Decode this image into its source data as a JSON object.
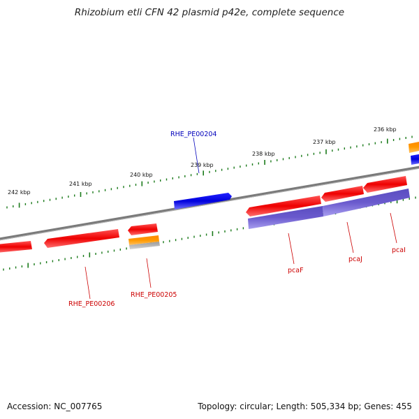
{
  "title": "Rhizobium etli CFN 42 plasmid p42e, complete sequence",
  "accession": "Accession: NC_007765",
  "summary": "Topology: circular; Length: 505,334 bp; Genes: 455",
  "colors": {
    "backbone": "#808080",
    "tick": "#1a7a1a",
    "gene_red": "#ee0000",
    "gene_blue": "#0000dd",
    "gene_orange": "#ff9900",
    "gene_purple": "#6a5acd",
    "gene_gray": "#aaaaaa",
    "label_red": "#cc0000",
    "label_blue": "#0000bb"
  },
  "scale_ticks": [
    "242 kbp",
    "241 kbp",
    "240 kbp",
    "239 kbp",
    "238 kbp",
    "237 kbp",
    "236 kbp"
  ],
  "gene_labels": [
    {
      "name": "RHE_PE00204",
      "color": "blue"
    },
    {
      "name": "RHE_PE00205",
      "color": "red"
    },
    {
      "name": "RHE_PE00206",
      "color": "red"
    },
    {
      "name": "pcaF",
      "color": "red"
    },
    {
      "name": "pcaJ",
      "color": "red"
    },
    {
      "name": "pcaI",
      "color": "red"
    }
  ]
}
